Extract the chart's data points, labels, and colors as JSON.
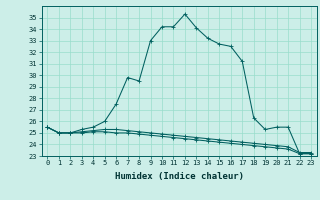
{
  "xlabel": "Humidex (Indice chaleur)",
  "x": [
    0,
    1,
    2,
    3,
    4,
    5,
    6,
    7,
    8,
    9,
    10,
    11,
    12,
    13,
    14,
    15,
    16,
    17,
    18,
    19,
    20,
    21,
    22,
    23
  ],
  "line1": [
    25.5,
    25.0,
    25.0,
    25.0,
    25.1,
    25.1,
    25.0,
    25.0,
    24.9,
    24.8,
    24.7,
    24.6,
    24.5,
    24.4,
    24.3,
    24.2,
    24.1,
    24.0,
    23.9,
    23.8,
    23.7,
    23.6,
    23.2,
    23.2
  ],
  "line2": [
    25.5,
    25.0,
    25.0,
    25.1,
    25.2,
    25.3,
    25.3,
    25.2,
    25.1,
    25.0,
    24.9,
    24.8,
    24.7,
    24.6,
    24.5,
    24.4,
    24.3,
    24.2,
    24.1,
    24.0,
    23.9,
    23.8,
    23.3,
    23.3
  ],
  "line3": [
    25.5,
    25.0,
    25.0,
    25.3,
    25.5,
    26.0,
    27.5,
    29.8,
    29.5,
    33.0,
    34.2,
    34.2,
    35.3,
    34.1,
    33.2,
    32.7,
    32.5,
    31.2,
    26.3,
    25.3,
    25.5,
    25.5,
    23.2,
    23.2
  ],
  "ylim": [
    23,
    36
  ],
  "xlim": [
    -0.5,
    23.5
  ],
  "yticks": [
    23,
    24,
    25,
    26,
    27,
    28,
    29,
    30,
    31,
    32,
    33,
    34,
    35
  ],
  "xticks": [
    0,
    1,
    2,
    3,
    4,
    5,
    6,
    7,
    8,
    9,
    10,
    11,
    12,
    13,
    14,
    15,
    16,
    17,
    18,
    19,
    20,
    21,
    22,
    23
  ],
  "line_color": "#005f5f",
  "bg_color": "#cceee8",
  "grid_color": "#99ddcc",
  "tick_label_fontsize": 5.0,
  "xlabel_fontsize": 6.5,
  "marker": "+"
}
